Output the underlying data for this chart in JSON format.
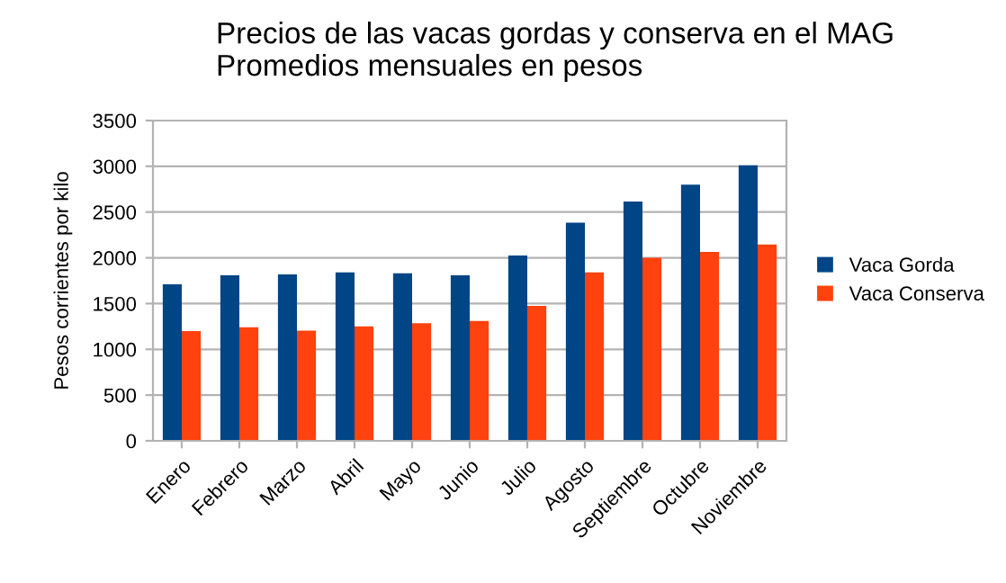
{
  "chart_data": {
    "type": "bar",
    "title": "Precios de las vacas gordas y conserva en el MAG\nPromedios mensuales en pesos",
    "ylabel": "Pesos corrientes por kilo",
    "categories": [
      "Enero",
      "Febrero",
      "Marzo",
      "Abril",
      "Mayo",
      "Junio",
      "Julio",
      "Agosto",
      "Septiembre",
      "Octubre",
      "Noviembre"
    ],
    "series": [
      {
        "name": "Vaca Gorda",
        "color": "#004586",
        "values": [
          1710,
          1810,
          1820,
          1840,
          1830,
          1810,
          2025,
          2385,
          2615,
          2800,
          3010
        ]
      },
      {
        "name": "Vaca Conserva",
        "color": "#ff420e",
        "values": [
          1200,
          1240,
          1205,
          1250,
          1285,
          1310,
          1475,
          1840,
          2000,
          2065,
          2145
        ]
      }
    ],
    "ylim": [
      0,
      3500
    ],
    "yticks": [
      0,
      500,
      1000,
      1500,
      2000,
      2500,
      3000,
      3500
    ],
    "grid": "y",
    "legend": "right"
  }
}
